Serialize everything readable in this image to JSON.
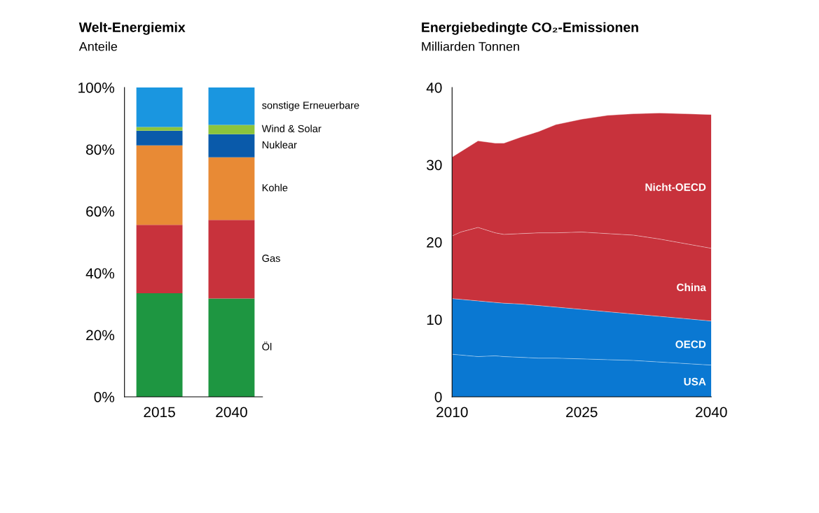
{
  "chart_data": [
    {
      "type": "bar",
      "title": "Welt-Energiemix",
      "subtitle": "Anteile",
      "stacked": true,
      "legend": false,
      "grid": false,
      "categories": [
        "2015",
        "2040"
      ],
      "ylim": [
        0,
        100
      ],
      "yticks": [
        {
          "value": 0,
          "label": "0%"
        },
        {
          "value": 20,
          "label": "20%"
        },
        {
          "value": 40,
          "label": "40%"
        },
        {
          "value": 60,
          "label": "60%"
        },
        {
          "value": 80,
          "label": "80%"
        },
        {
          "value": 100,
          "label": "100%"
        }
      ],
      "series": [
        {
          "name": "Öl",
          "color": "#1e9641",
          "values": [
            33.5,
            31.8
          ]
        },
        {
          "name": "Gas",
          "color": "#c8323c",
          "values": [
            22.1,
            25.4
          ]
        },
        {
          "name": "Kohle",
          "color": "#e88a35",
          "values": [
            25.7,
            20.2
          ]
        },
        {
          "name": "Nuklear",
          "color": "#0a5aaa",
          "values": [
            4.7,
            7.5
          ]
        },
        {
          "name": "Wind & Solar",
          "color": "#8cc43c",
          "values": [
            1.2,
            3.0
          ]
        },
        {
          "name": "sonstige Erneuerbare",
          "color": "#1a96e0",
          "values": [
            12.8,
            12.1
          ]
        }
      ]
    },
    {
      "type": "area",
      "title": "Energiebedingte CO₂-Emissionen",
      "subtitle": "Milliarden Tonnen",
      "stacked": true,
      "legend": false,
      "grid": false,
      "x": [
        2010,
        2011,
        2013,
        2015,
        2016,
        2018,
        2020,
        2022,
        2025,
        2028,
        2031,
        2034,
        2037,
        2040
      ],
      "xlim": [
        2010,
        2040
      ],
      "xticks": [
        2010,
        2025,
        2040
      ],
      "ylim": [
        0,
        40
      ],
      "yticks": [
        0,
        10,
        20,
        30,
        40
      ],
      "series": [
        {
          "name": "USA",
          "color": "#0a78d2",
          "values": [
            5.5,
            5.4,
            5.2,
            5.3,
            5.2,
            5.1,
            5.0,
            5.0,
            4.9,
            4.8,
            4.7,
            4.5,
            4.3,
            4.1
          ]
        },
        {
          "name": "OECD",
          "color": "#0a78d2",
          "values": [
            7.2,
            7.2,
            7.2,
            6.9,
            6.9,
            6.9,
            6.8,
            6.6,
            6.4,
            6.2,
            6.0,
            5.9,
            5.8,
            5.7
          ]
        },
        {
          "name": "China",
          "color": "#c8323c",
          "values": [
            8.1,
            8.7,
            9.5,
            9.0,
            8.9,
            9.1,
            9.4,
            9.6,
            10.0,
            10.1,
            10.2,
            10.0,
            9.7,
            9.4
          ]
        },
        {
          "name": "Nicht-OECD",
          "color": "#c8323c",
          "values": [
            10.2,
            10.4,
            11.2,
            11.6,
            11.8,
            12.5,
            13.1,
            14.0,
            14.6,
            15.3,
            15.7,
            16.3,
            16.8,
            17.3
          ]
        }
      ]
    }
  ]
}
